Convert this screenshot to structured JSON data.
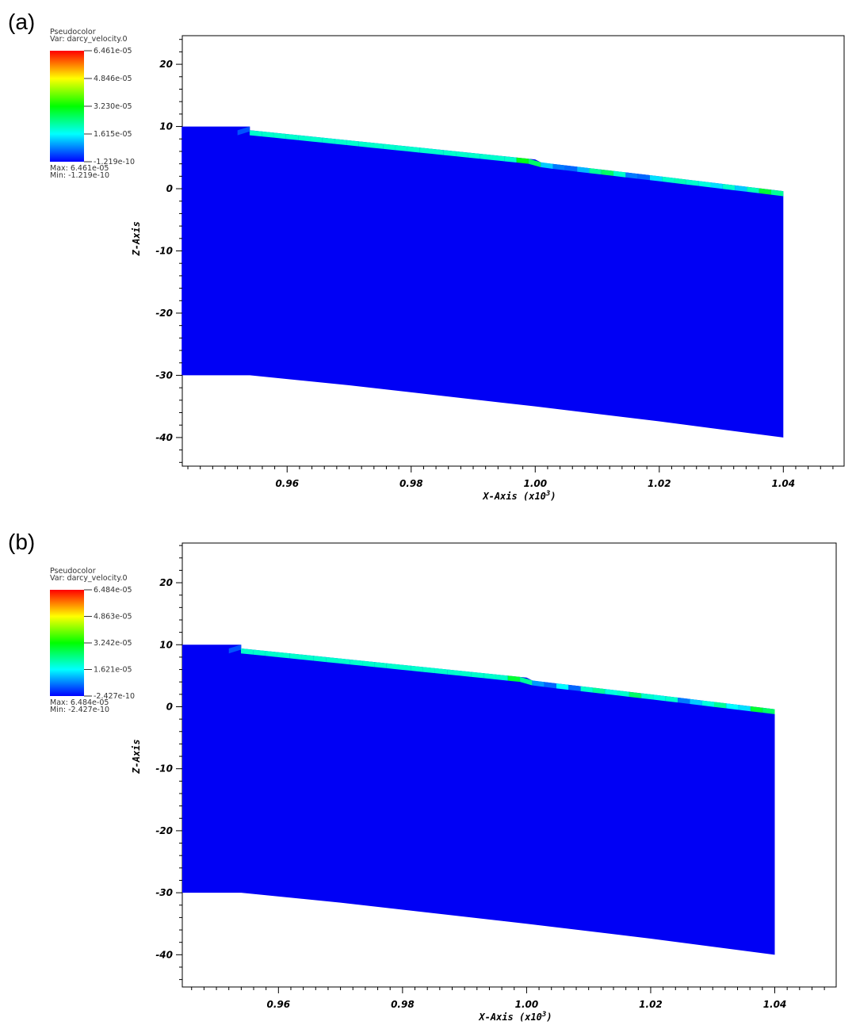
{
  "colors": {
    "domain": "#0000f5",
    "frame": "#000000",
    "colormap": [
      "#0000ff",
      "#00ffff",
      "#00ff00",
      "#ffff00",
      "#ff0000"
    ]
  },
  "chart_data": [
    {
      "panel_label": "(a)",
      "type": "heatmap",
      "title": "Pseudocolor",
      "variable": "Var: darcy_velocity.0",
      "xlabel": "X-Axis (x10",
      "xlabel_exp": "3",
      "xlabel_close": ")",
      "ylabel": "Z-Axis",
      "xlim": [
        0.9431,
        1.0498
      ],
      "ylim": [
        -44.6,
        24.6
      ],
      "xticks": [
        0.96,
        0.98,
        1.0,
        1.02,
        1.04
      ],
      "xtick_labels": [
        "0.96",
        "0.98",
        "1.00",
        "1.02",
        "1.04"
      ],
      "yticks": [
        20,
        10,
        0,
        -10,
        -20,
        -30,
        -40
      ],
      "ytick_labels": [
        "20",
        "10",
        "0",
        "-10",
        "-20",
        "-30",
        "-40"
      ],
      "legend": {
        "tick_labels": [
          "6.461e-05",
          "4.846e-05",
          "3.230e-05",
          "1.615e-05",
          "-1.219e-10"
        ],
        "max_label": "Max:  6.461e-05",
        "min_label": "Min: -1.219e-10"
      },
      "domain_top": [
        [
          0.943,
          10
        ],
        [
          0.954,
          10
        ],
        [
          0.954,
          9.4
        ],
        [
          1.0,
          4.7
        ],
        [
          1.001,
          4.2
        ],
        [
          1.02,
          2.0
        ],
        [
          1.04,
          -0.4
        ]
      ],
      "domain_bottom": [
        [
          0.943,
          -30
        ],
        [
          0.954,
          -30
        ],
        [
          0.97,
          -31.6
        ],
        [
          1.0,
          -35
        ],
        [
          1.02,
          -37.4
        ],
        [
          1.04,
          -40
        ]
      ],
      "x_max": 1.04,
      "surface_velocity_fraction": [
        0.08,
        0.3,
        0.3,
        0.3,
        0.3,
        0.3,
        0.3,
        0.3,
        0.3,
        0.3,
        0.3,
        0.3,
        0.3,
        0.3,
        0.3,
        0.3,
        0.3,
        0.3,
        0.3,
        0.3,
        0.3,
        0.3,
        0.3,
        0.48,
        0.4,
        0.2,
        0.12,
        0.1,
        0.18,
        0.35,
        0.4,
        0.3,
        0.12,
        0.1,
        0.22,
        0.3,
        0.32,
        0.3,
        0.28,
        0.22,
        0.3,
        0.2,
        0.32,
        0.45,
        0.35
      ]
    },
    {
      "panel_label": "(b)",
      "type": "heatmap",
      "title": "Pseudocolor",
      "variable": "Var: darcy_velocity.0",
      "xlabel": "X-Axis (x10",
      "xlabel_exp": "3",
      "xlabel_close": ")",
      "ylabel": "Z-Axis",
      "xlim": [
        0.9445,
        1.0499
      ],
      "ylim": [
        -45.2,
        26.4
      ],
      "xticks": [
        0.96,
        0.98,
        1.0,
        1.02,
        1.04
      ],
      "xtick_labels": [
        "0.96",
        "0.98",
        "1.00",
        "1.02",
        "1.04"
      ],
      "yticks": [
        20,
        10,
        0,
        -10,
        -20,
        -30,
        -40
      ],
      "ytick_labels": [
        "20",
        "10",
        "0",
        "-10",
        "-20",
        "-30",
        "-40"
      ],
      "legend": {
        "tick_labels": [
          "6.484e-05",
          "4.863e-05",
          "3.242e-05",
          "1.621e-05",
          "-2.427e-10"
        ],
        "max_label": "Max:  6.484e-05",
        "min_label": "Min: -2.427e-10"
      },
      "domain_top": [
        [
          0.9445,
          10
        ],
        [
          0.954,
          10
        ],
        [
          0.954,
          9.4
        ],
        [
          1.0,
          4.7
        ],
        [
          1.001,
          4.2
        ],
        [
          1.02,
          2.0
        ],
        [
          1.04,
          -0.4
        ]
      ],
      "domain_bottom": [
        [
          0.9445,
          -30
        ],
        [
          0.954,
          -30
        ],
        [
          0.97,
          -31.6
        ],
        [
          1.0,
          -35
        ],
        [
          1.02,
          -37.4
        ],
        [
          1.04,
          -40
        ]
      ],
      "x_max": 1.04,
      "surface_velocity_fraction": [
        0.08,
        0.3,
        0.3,
        0.3,
        0.3,
        0.3,
        0.3,
        0.3,
        0.3,
        0.3,
        0.3,
        0.3,
        0.3,
        0.3,
        0.3,
        0.3,
        0.3,
        0.3,
        0.3,
        0.3,
        0.3,
        0.3,
        0.3,
        0.45,
        0.35,
        0.15,
        0.1,
        0.25,
        0.1,
        0.3,
        0.35,
        0.28,
        0.3,
        0.4,
        0.3,
        0.28,
        0.3,
        0.12,
        0.2,
        0.28,
        0.35,
        0.25,
        0.22,
        0.45,
        0.4
      ]
    }
  ]
}
